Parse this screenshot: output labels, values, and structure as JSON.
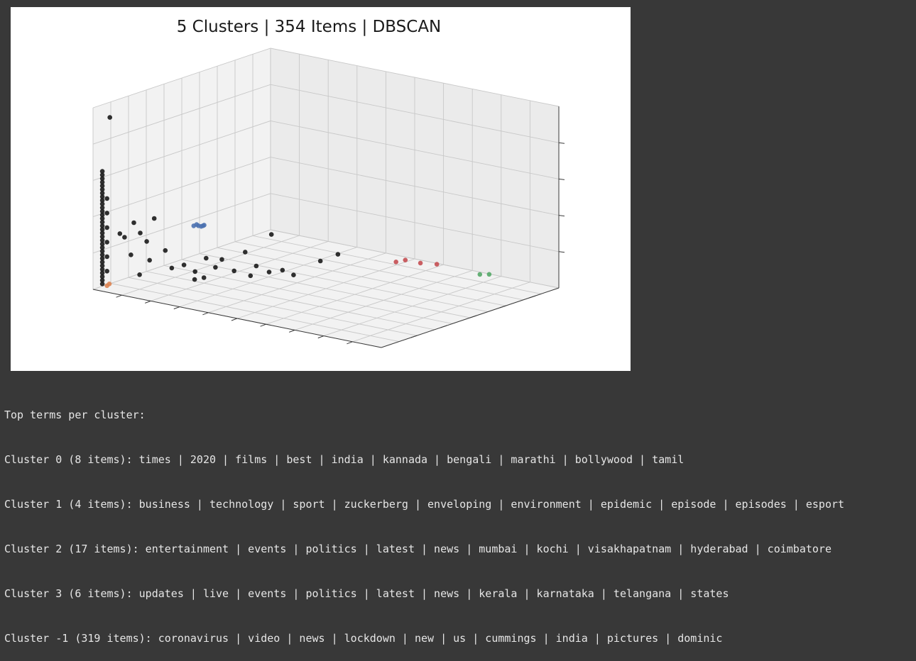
{
  "chart_data": {
    "type": "scatter",
    "dimensions": 3,
    "title": "5 Clusters | 354 Items | DBSCAN",
    "xlabel": "",
    "ylabel": "",
    "zlabel": "",
    "grid": true,
    "legend": "none",
    "series": [
      {
        "color": "#1a1a1a",
        "points": [
          [
            0.04,
            0.97,
            0.95
          ],
          [
            0.02,
            0.98,
            0.65
          ],
          [
            0.02,
            0.98,
            0.63
          ],
          [
            0.02,
            0.98,
            0.61
          ],
          [
            0.02,
            0.98,
            0.59
          ],
          [
            0.02,
            0.98,
            0.57
          ],
          [
            0.02,
            0.98,
            0.55
          ],
          [
            0.02,
            0.98,
            0.53
          ],
          [
            0.02,
            0.98,
            0.51
          ],
          [
            0.02,
            0.98,
            0.49
          ],
          [
            0.02,
            0.98,
            0.47
          ],
          [
            0.02,
            0.98,
            0.45
          ],
          [
            0.02,
            0.98,
            0.43
          ],
          [
            0.02,
            0.98,
            0.41
          ],
          [
            0.02,
            0.98,
            0.39
          ],
          [
            0.02,
            0.98,
            0.37
          ],
          [
            0.02,
            0.98,
            0.35
          ],
          [
            0.02,
            0.98,
            0.33
          ],
          [
            0.02,
            0.98,
            0.31
          ],
          [
            0.02,
            0.98,
            0.29
          ],
          [
            0.02,
            0.98,
            0.27
          ],
          [
            0.02,
            0.98,
            0.25
          ],
          [
            0.02,
            0.98,
            0.23
          ],
          [
            0.02,
            0.98,
            0.21
          ],
          [
            0.02,
            0.98,
            0.19
          ],
          [
            0.02,
            0.98,
            0.17
          ],
          [
            0.02,
            0.98,
            0.15
          ],
          [
            0.02,
            0.98,
            0.13
          ],
          [
            0.02,
            0.98,
            0.11
          ],
          [
            0.02,
            0.98,
            0.09
          ],
          [
            0.02,
            0.98,
            0.07
          ],
          [
            0.02,
            0.98,
            0.05
          ],
          [
            0.02,
            0.98,
            0.03
          ],
          [
            0.03,
            0.97,
            0.5
          ],
          [
            0.03,
            0.97,
            0.42
          ],
          [
            0.03,
            0.97,
            0.34
          ],
          [
            0.03,
            0.97,
            0.26
          ],
          [
            0.03,
            0.97,
            0.18
          ],
          [
            0.03,
            0.97,
            0.1
          ],
          [
            0.05,
            0.93,
            0.3
          ],
          [
            0.06,
            0.92,
            0.28
          ],
          [
            0.08,
            0.9,
            0.36
          ],
          [
            0.09,
            0.88,
            0.3
          ],
          [
            0.1,
            0.86,
            0.25
          ],
          [
            0.07,
            0.9,
            0.18
          ],
          [
            0.11,
            0.86,
            0.15
          ],
          [
            0.12,
            0.85,
            0.38
          ],
          [
            0.14,
            0.82,
            0.2
          ],
          [
            0.1,
            0.9,
            0.08
          ],
          [
            0.15,
            0.8,
            0.1
          ],
          [
            0.18,
            0.78,
            0.12
          ],
          [
            0.2,
            0.75,
            0.08
          ],
          [
            0.22,
            0.72,
            0.15
          ],
          [
            0.24,
            0.7,
            0.1
          ],
          [
            0.25,
            0.68,
            0.14
          ],
          [
            0.28,
            0.66,
            0.08
          ],
          [
            0.3,
            0.63,
            0.18
          ],
          [
            0.32,
            0.6,
            0.1
          ],
          [
            0.36,
            0.58,
            0.28
          ],
          [
            0.38,
            0.55,
            0.08
          ],
          [
            0.4,
            0.52,
            0.05
          ],
          [
            0.18,
            0.72,
            0.02
          ],
          [
            0.2,
            0.7,
            0.03
          ],
          [
            0.45,
            0.45,
            0.12
          ],
          [
            0.48,
            0.4,
            0.15
          ],
          [
            0.3,
            0.6,
            0.04
          ],
          [
            0.34,
            0.56,
            0.06
          ]
        ]
      },
      {
        "color": "#dd8452",
        "points": [
          [
            0.03,
            0.97,
            0.02
          ],
          [
            0.035,
            0.965,
            0.03
          ]
        ]
      },
      {
        "color": "#4c72b0",
        "points": [
          [
            0.3,
            0.92,
            0.42
          ],
          [
            0.31,
            0.91,
            0.42
          ],
          [
            0.32,
            0.9,
            0.42
          ],
          [
            0.33,
            0.91,
            0.43
          ],
          [
            0.31,
            0.92,
            0.43
          ],
          [
            0.32,
            0.91,
            0.42
          ]
        ]
      },
      {
        "color": "#c44e52",
        "points": [
          [
            0.62,
            0.3,
            0.12
          ],
          [
            0.64,
            0.28,
            0.13
          ],
          [
            0.68,
            0.26,
            0.12
          ],
          [
            0.7,
            0.2,
            0.1
          ]
        ]
      },
      {
        "color": "#55a868",
        "points": [
          [
            0.8,
            0.12,
            0.05
          ],
          [
            0.82,
            0.1,
            0.05
          ]
        ]
      }
    ]
  },
  "output": {
    "header": "Top terms per cluster:",
    "lines": [
      "Cluster 0 (8 items): times | 2020 | films | best | india | kannada | bengali | marathi | bollywood | tamil",
      "Cluster 1 (4 items): business | technology | sport | zuckerberg | enveloping | environment | epidemic | episode | episodes | esport",
      "Cluster 2 (17 items): entertainment | events | politics | latest | news | mumbai | kochi | visakhapatnam | hyderabad | coimbatore",
      "Cluster 3 (6 items): updates | live | events | politics | latest | news | kerala | karnataka | telangana | states",
      "Cluster -1 (319 items): coronavirus | video | news | lockdown | new | us | cummings | india | pictures | dominic"
    ]
  }
}
